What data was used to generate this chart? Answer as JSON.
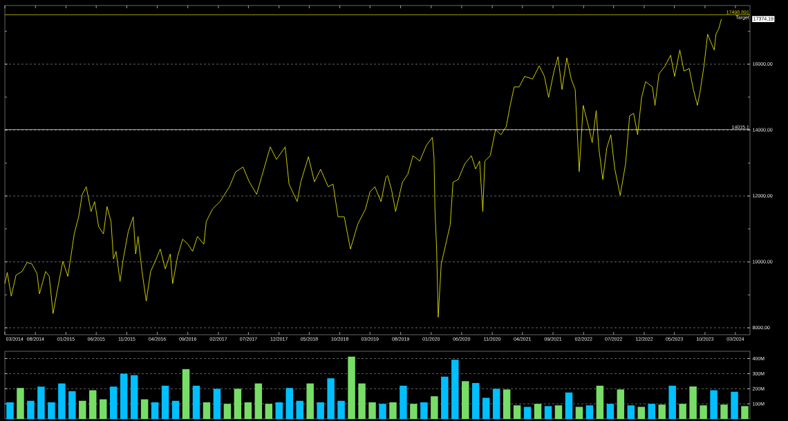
{
  "chart_data": [
    {
      "type": "line",
      "color": "#e0e000",
      "grid": "y",
      "tick_labels": "xy",
      "x": [
        "2014-03-01",
        "2014-03-13",
        "2014-04-02",
        "2014-04-26",
        "2014-05-26",
        "2014-06-20",
        "2014-07-14",
        "2014-08-09",
        "2014-08-21",
        "2014-09-21",
        "2014-10-09",
        "2014-10-28",
        "2014-11-22",
        "2014-12-16",
        "2015-01-10",
        "2015-01-29",
        "2015-02-11",
        "2015-03-05",
        "2015-03-23",
        "2015-04-12",
        "2015-05-06",
        "2015-05-24",
        "2015-06-13",
        "2015-07-07",
        "2015-07-25",
        "2015-08-14",
        "2015-08-26",
        "2015-09-08",
        "2015-09-28",
        "2015-10-14",
        "2015-11-08",
        "2015-12-03",
        "2015-12-15",
        "2015-12-27",
        "2016-01-16",
        "2016-02-06",
        "2016-02-28",
        "2016-03-22",
        "2016-04-16",
        "2016-05-11",
        "2016-06-05",
        "2016-06-17",
        "2016-07-12",
        "2016-08-06",
        "2016-09-01",
        "2016-09-25",
        "2016-10-19",
        "2016-11-20",
        "2016-12-02",
        "2017-01-02",
        "2017-02-09",
        "2017-03-28",
        "2017-04-28",
        "2017-06-04",
        "2017-07-05",
        "2017-08-11",
        "2017-09-05",
        "2017-10-18",
        "2017-11-18",
        "2018-01-01",
        "2018-01-20",
        "2018-03-02",
        "2018-03-20",
        "2018-04-27",
        "2018-05-27",
        "2018-06-27",
        "2018-08-04",
        "2018-08-28",
        "2018-09-22",
        "2018-10-23",
        "2018-11-23",
        "2018-12-30",
        "2019-02-06",
        "2019-03-01",
        "2019-03-25",
        "2019-04-25",
        "2019-05-20",
        "2019-05-28",
        "2019-06-17",
        "2019-07-07",
        "2019-08-10",
        "2019-09-06",
        "2019-10-02",
        "2019-11-05",
        "2019-12-08",
        "2020-01-07",
        "2020-01-15",
        "2020-01-20",
        "2020-01-28",
        "2020-02-05",
        "2020-02-20",
        "2020-03-09",
        "2020-04-05",
        "2020-04-19",
        "2020-05-15",
        "2020-06-17",
        "2020-07-20",
        "2020-08-10",
        "2020-08-30",
        "2020-09-15",
        "2020-09-25",
        "2020-10-22",
        "2020-11-18",
        "2020-12-14",
        "2021-01-10",
        "2021-01-30",
        "2021-02-19",
        "2021-03-16",
        "2021-04-12",
        "2021-05-22",
        "2021-06-24",
        "2021-07-20",
        "2021-08-10",
        "2021-09-06",
        "2021-09-26",
        "2021-10-16",
        "2021-11-09",
        "2021-12-01",
        "2021-12-21",
        "2022-01-10",
        "2022-01-30",
        "2022-02-26",
        "2022-03-16",
        "2022-04-05",
        "2022-04-18",
        "2022-05-08",
        "2022-05-28",
        "2022-06-17",
        "2022-07-07",
        "2022-08-03",
        "2022-08-30",
        "2022-09-19",
        "2022-10-09",
        "2022-10-29",
        "2022-11-18",
        "2022-12-08",
        "2023-01-11",
        "2023-01-24",
        "2023-02-13",
        "2023-03-16",
        "2023-04-12",
        "2023-05-02",
        "2023-05-28",
        "2023-06-18",
        "2023-07-14",
        "2023-08-04",
        "2023-08-24",
        "2023-09-06",
        "2023-09-26",
        "2023-10-14",
        "2023-10-30",
        "2023-11-16",
        "2023-11-25",
        "2023-12-09",
        "2023-12-22"
      ],
      "values": [
        9340,
        9680,
        8960,
        9600,
        9710,
        9980,
        9940,
        9640,
        9030,
        9710,
        9560,
        8430,
        9260,
        10020,
        9560,
        10320,
        10850,
        11370,
        12050,
        12280,
        11530,
        11830,
        11070,
        10850,
        11680,
        11220,
        10090,
        10320,
        9410,
        10090,
        10920,
        11370,
        10240,
        10770,
        9710,
        8810,
        9710,
        10020,
        10390,
        9790,
        10240,
        9340,
        10170,
        10690,
        10540,
        10320,
        10770,
        10540,
        11220,
        11600,
        11830,
        12280,
        12730,
        12880,
        12430,
        12050,
        12580,
        13490,
        13110,
        13490,
        12360,
        11830,
        12430,
        13190,
        12430,
        12810,
        12280,
        12360,
        11370,
        11370,
        10390,
        11150,
        11600,
        12130,
        12280,
        11830,
        12580,
        12620,
        12180,
        11530,
        12420,
        12660,
        13220,
        13060,
        13540,
        13780,
        13140,
        11530,
        10410,
        8320,
        9930,
        10410,
        11130,
        12420,
        12500,
        12980,
        13220,
        12820,
        13060,
        11530,
        13060,
        13220,
        14020,
        13860,
        14100,
        14750,
        15310,
        15310,
        15630,
        15550,
        15950,
        15630,
        14990,
        15790,
        16230,
        15230,
        16190,
        15550,
        15230,
        12740,
        14750,
        14100,
        13620,
        14590,
        13460,
        12500,
        13460,
        13860,
        12820,
        12020,
        12980,
        14430,
        14510,
        13860,
        14990,
        15470,
        15310,
        14750,
        15710,
        15950,
        16270,
        15630,
        16430,
        15790,
        15870,
        15230,
        14750,
        15150,
        15950,
        16910,
        16670,
        16430,
        16910,
        17080,
        17370
      ],
      "xlim": [
        "2014-03-01",
        "2024-05-13"
      ],
      "ylim": [
        7790,
        17780
      ],
      "xticks": [
        {
          "value": "2014-03-01",
          "label": "03/2014"
        },
        {
          "value": "2014-08-01",
          "label": "08/2014"
        },
        {
          "value": "2015-01-01",
          "label": "01/2015"
        },
        {
          "value": "2015-06-01",
          "label": "06/2015"
        },
        {
          "value": "2015-11-01",
          "label": "11/2015"
        },
        {
          "value": "2016-04-01",
          "label": "04/2016"
        },
        {
          "value": "2016-09-01",
          "label": "09/2016"
        },
        {
          "value": "2017-02-01",
          "label": "02/2017"
        },
        {
          "value": "2017-07-01",
          "label": "07/2017"
        },
        {
          "value": "2017-12-01",
          "label": "12/2017"
        },
        {
          "value": "2018-05-01",
          "label": "05/2018"
        },
        {
          "value": "2018-10-01",
          "label": "10/2018"
        },
        {
          "value": "2019-03-01",
          "label": "03/2019"
        },
        {
          "value": "2019-08-01",
          "label": "08/2019"
        },
        {
          "value": "2020-01-01",
          "label": "01/2020"
        },
        {
          "value": "2020-06-01",
          "label": "06/2020"
        },
        {
          "value": "2020-11-01",
          "label": "11/2020"
        },
        {
          "value": "2021-04-01",
          "label": "04/2021"
        },
        {
          "value": "2021-09-01",
          "label": "09/2021"
        },
        {
          "value": "2022-02-01",
          "label": "02/2022"
        },
        {
          "value": "2022-07-01",
          "label": "07/2022"
        },
        {
          "value": "2022-12-01",
          "label": "12/2022"
        },
        {
          "value": "2023-05-01",
          "label": "05/2023"
        },
        {
          "value": "2023-10-01",
          "label": "10/2023"
        },
        {
          "value": "2024-03-01",
          "label": "03/2024"
        }
      ],
      "yticks": [
        {
          "value": 8000,
          "label": "8000,00"
        },
        {
          "value": 9000,
          "label": null
        },
        {
          "value": 10000,
          "label": "10000,00"
        },
        {
          "value": 11000,
          "label": null
        },
        {
          "value": 12000,
          "label": "12000,00"
        },
        {
          "value": 13000,
          "label": null
        },
        {
          "value": 14000,
          "label": "14000,00"
        },
        {
          "value": 15000,
          "label": null
        },
        {
          "value": 16000,
          "label": "16000,00"
        },
        {
          "value": 17000,
          "label": null
        }
      ],
      "ref_lines": [
        {
          "axis": "y",
          "value": 14015.1,
          "label": "14015.1",
          "color": "#ffffff"
        },
        {
          "axis": "y",
          "value": 17498.891,
          "label": "17498.891",
          "color": "#e0e000"
        }
      ],
      "annotations": [
        "Target",
        "17374,19"
      ]
    },
    {
      "type": "bar",
      "grid": "y",
      "tick_labels": "y",
      "categories": [
        null,
        null,
        null,
        null,
        null,
        null,
        null,
        null,
        null,
        null,
        null,
        null,
        null,
        null,
        null,
        null,
        null,
        null,
        null,
        null,
        null,
        null,
        null,
        null,
        null,
        null,
        null,
        null,
        null,
        null,
        null,
        null,
        null,
        null,
        null,
        null,
        null,
        null,
        null,
        null,
        null,
        null,
        null,
        null,
        null,
        null,
        null,
        null,
        null,
        null,
        null,
        null,
        null,
        null,
        null,
        null,
        null,
        null,
        null,
        null,
        null,
        null,
        null,
        null,
        null,
        null,
        null,
        null,
        null,
        null,
        null,
        null
      ],
      "values": [
        110,
        205,
        120,
        214,
        110,
        235,
        184,
        120,
        190,
        130,
        214,
        300,
        290,
        130,
        110,
        220,
        120,
        330,
        220,
        110,
        200,
        100,
        200,
        110,
        235,
        100,
        110,
        205,
        120,
        235,
        110,
        269,
        120,
        413,
        235,
        110,
        100,
        110,
        220,
        100,
        110,
        150,
        280,
        392,
        250,
        238,
        140,
        200,
        195,
        90,
        80,
        100,
        85,
        90,
        175,
        80,
        90,
        220,
        100,
        195,
        90,
        80,
        100,
        95,
        220,
        100,
        215,
        90,
        190,
        95,
        180,
        85
      ],
      "colors": [
        "#00bfff",
        "#77dd66",
        "#00bfff",
        "#00bfff",
        "#00bfff",
        "#00bfff",
        "#00bfff",
        "#77dd66",
        "#77dd66",
        "#77dd66",
        "#00bfff",
        "#00bfff",
        "#00bfff",
        "#77dd66",
        "#00bfff",
        "#00bfff",
        "#00bfff",
        "#77dd66",
        "#00bfff",
        "#77dd66",
        "#00bfff",
        "#77dd66",
        "#77dd66",
        "#77dd66",
        "#77dd66",
        "#77dd66",
        "#00bfff",
        "#00bfff",
        "#00bfff",
        "#77dd66",
        "#00bfff",
        "#00bfff",
        "#00bfff",
        "#77dd66",
        "#77dd66",
        "#77dd66",
        "#00bfff",
        "#77dd66",
        "#00bfff",
        "#77dd66",
        "#00bfff",
        "#77dd66",
        "#00bfff",
        "#00bfff",
        "#77dd66",
        "#00bfff",
        "#00bfff",
        "#00bfff",
        "#77dd66",
        "#77dd66",
        "#00bfff",
        "#77dd66",
        "#00bfff",
        "#77dd66",
        "#00bfff",
        "#77dd66",
        "#00bfff",
        "#77dd66",
        "#00bfff",
        "#77dd66",
        "#00bfff",
        "#77dd66",
        "#00bfff",
        "#77dd66",
        "#00bfff",
        "#77dd66",
        "#77dd66",
        "#77dd66",
        "#00bfff",
        "#77dd66",
        "#00bfff",
        "#77dd66"
      ],
      "ylim": [
        0,
        448
      ],
      "yticks": [
        {
          "value": 100,
          "label": "100M"
        },
        {
          "value": 200,
          "label": "200M"
        },
        {
          "value": 300,
          "label": "300M"
        },
        {
          "value": 400,
          "label": "400M"
        }
      ]
    }
  ]
}
